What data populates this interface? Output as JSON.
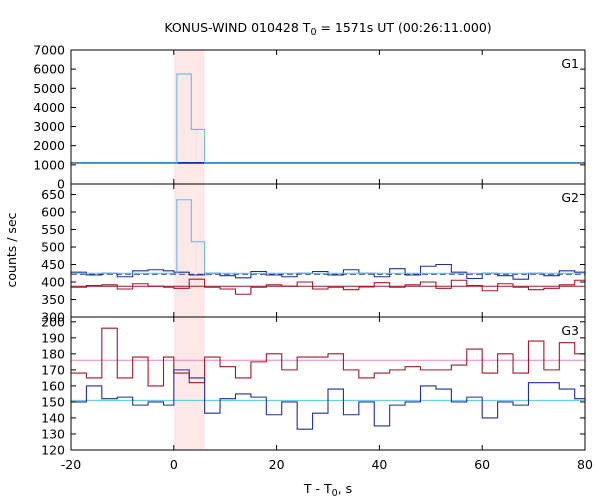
{
  "chart_data": {
    "type": "line",
    "title_main": "KONUS-WIND 010428 T",
    "title_sub": "0",
    "title_rest": " = 1571s UT (00:26:11.000)",
    "xlabel_main": "T - T",
    "xlabel_sub": "0",
    "xlabel_rest": ", s",
    "ylabel": "counts / sec",
    "xlim": [
      -20,
      80
    ],
    "x_ticks": [
      -20,
      0,
      20,
      40,
      60,
      80
    ],
    "x_tick_labels": [
      "-20",
      "0",
      "20",
      "40",
      "60",
      "80"
    ],
    "highlight_interval": [
      0,
      6
    ],
    "colors": {
      "highlight": "#fde8e8",
      "g1_hist": "#6ab8e8",
      "g1_fit": "#6ab8e8",
      "low_hist": "#1f2f9c",
      "low_fit": "#3040a8",
      "high_hist": "#a01828",
      "g3_low_fit": "#50c8e0",
      "g3_high_fit": "#f080c0"
    },
    "panels": [
      {
        "label": "G1",
        "ylim": [
          0,
          7000
        ],
        "y_ticks": [
          0,
          1000,
          2000,
          3000,
          4000,
          5000,
          6000,
          7000
        ],
        "y_tick_labels": [
          "0",
          "1000",
          "2000",
          "3000",
          "4000",
          "5000",
          "6000",
          "7000"
        ],
        "series": [
          {
            "role": "high_hist",
            "bin_edges": [
              -20,
              80
            ],
            "values": [
              1080
            ]
          },
          {
            "role": "low_hist",
            "bin_edges": [
              -20,
              80
            ],
            "values": [
              1120
            ]
          },
          {
            "role": "g1_hist",
            "bin_edges": [
              -20,
              0,
              0.6,
              3.4,
              6,
              80
            ],
            "values": [
              1100,
              1100,
              5750,
              2850,
              1100
            ]
          }
        ],
        "fits": [
          {
            "role": "g1_fit",
            "value": 1100,
            "dashed": false
          }
        ]
      },
      {
        "label": "G2",
        "ylim": [
          300,
          680
        ],
        "y_ticks": [
          300,
          350,
          400,
          450,
          500,
          550,
          600,
          650
        ],
        "y_tick_labels": [
          "300",
          "350",
          "400",
          "450",
          "500",
          "550",
          "600",
          "650"
        ],
        "series": [
          {
            "role": "high_hist",
            "bin_edges": [
              -20,
              -17,
              -14,
              -11,
              -8,
              -5,
              -2,
              0,
              3,
              6,
              9,
              12,
              15,
              18,
              21,
              24,
              27,
              30,
              33,
              36,
              39,
              42,
              45,
              48,
              51,
              54,
              57,
              60,
              63,
              66,
              69,
              72,
              75,
              78,
              80
            ],
            "values": [
              385,
              390,
              392,
              380,
              395,
              388,
              385,
              382,
              408,
              385,
              380,
              365,
              385,
              392,
              388,
              400,
              380,
              385,
              378,
              386,
              398,
              385,
              392,
              400,
              382,
              405,
              390,
              375,
              395,
              385,
              378,
              382,
              392,
              405
            ]
          },
          {
            "role": "low_hist",
            "bin_edges": [
              -20,
              -17,
              -14,
              -11,
              -8,
              -5,
              -2,
              0,
              3,
              6,
              9,
              12,
              15,
              18,
              21,
              24,
              27,
              30,
              33,
              36,
              39,
              42,
              45,
              48,
              51,
              54,
              57,
              60,
              63,
              66,
              69,
              72,
              75,
              78,
              80
            ],
            "values": [
              428,
              420,
              425,
              415,
              432,
              435,
              432,
              428,
              420,
              425,
              418,
              412,
              430,
              420,
              415,
              425,
              430,
              420,
              435,
              425,
              415,
              438,
              420,
              445,
              450,
              428,
              410,
              425,
              418,
              408,
              425,
              418,
              432,
              428
            ]
          },
          {
            "role": "g1_hist",
            "bin_edges": [
              -20,
              0,
              0.6,
              3.4,
              6,
              80
            ],
            "values": [
              425,
              425,
              635,
              515,
              425
            ]
          }
        ],
        "fits": [
          {
            "role": "low_fit",
            "value": 422,
            "dashed": true
          },
          {
            "role": "high_fit_line",
            "value": 388,
            "dashed": false
          }
        ]
      },
      {
        "label": "G3",
        "ylim": [
          120,
          203
        ],
        "y_ticks": [
          120,
          130,
          140,
          150,
          160,
          170,
          180,
          190,
          200
        ],
        "y_tick_labels": [
          "120",
          "130",
          "140",
          "150",
          "160",
          "170",
          "180",
          "190",
          "200"
        ],
        "series": [
          {
            "role": "high_hist",
            "bin_edges": [
              -20,
              -17,
              -14,
              -11,
              -8,
              -5,
              -2,
              0,
              3,
              6,
              9,
              12,
              15,
              18,
              21,
              24,
              27,
              30,
              33,
              36,
              39,
              42,
              45,
              48,
              51,
              54,
              57,
              60,
              63,
              66,
              69,
              72,
              75,
              78,
              80
            ],
            "values": [
              168,
              165,
              196,
              165,
              178,
              160,
              178,
              168,
              162,
              178,
              172,
              165,
              175,
              180,
              170,
              178,
              178,
              180,
              170,
              165,
              168,
              170,
              172,
              170,
              170,
              173,
              183,
              168,
              180,
              168,
              188,
              170,
              187,
              180
            ]
          },
          {
            "role": "low_hist",
            "bin_edges": [
              -20,
              -17,
              -14,
              -11,
              -8,
              -5,
              -2,
              0,
              3,
              6,
              9,
              12,
              15,
              18,
              21,
              24,
              27,
              30,
              33,
              36,
              39,
              42,
              45,
              48,
              51,
              54,
              57,
              60,
              63,
              66,
              69,
              72,
              75,
              78,
              80
            ],
            "values": [
              150,
              160,
              152,
              153,
              148,
              150,
              148,
              170,
              165,
              143,
              152,
              155,
              153,
              142,
              150,
              133,
              143,
              158,
              142,
              150,
              135,
              148,
              150,
              160,
              158,
              150,
              153,
              140,
              150,
              148,
              162,
              162,
              158,
              152
            ]
          }
        ],
        "fits": [
          {
            "role": "g3_high_fit",
            "value": 176,
            "dashed": false
          },
          {
            "role": "g3_low_fit",
            "value": 151,
            "dashed": false
          }
        ]
      }
    ]
  }
}
